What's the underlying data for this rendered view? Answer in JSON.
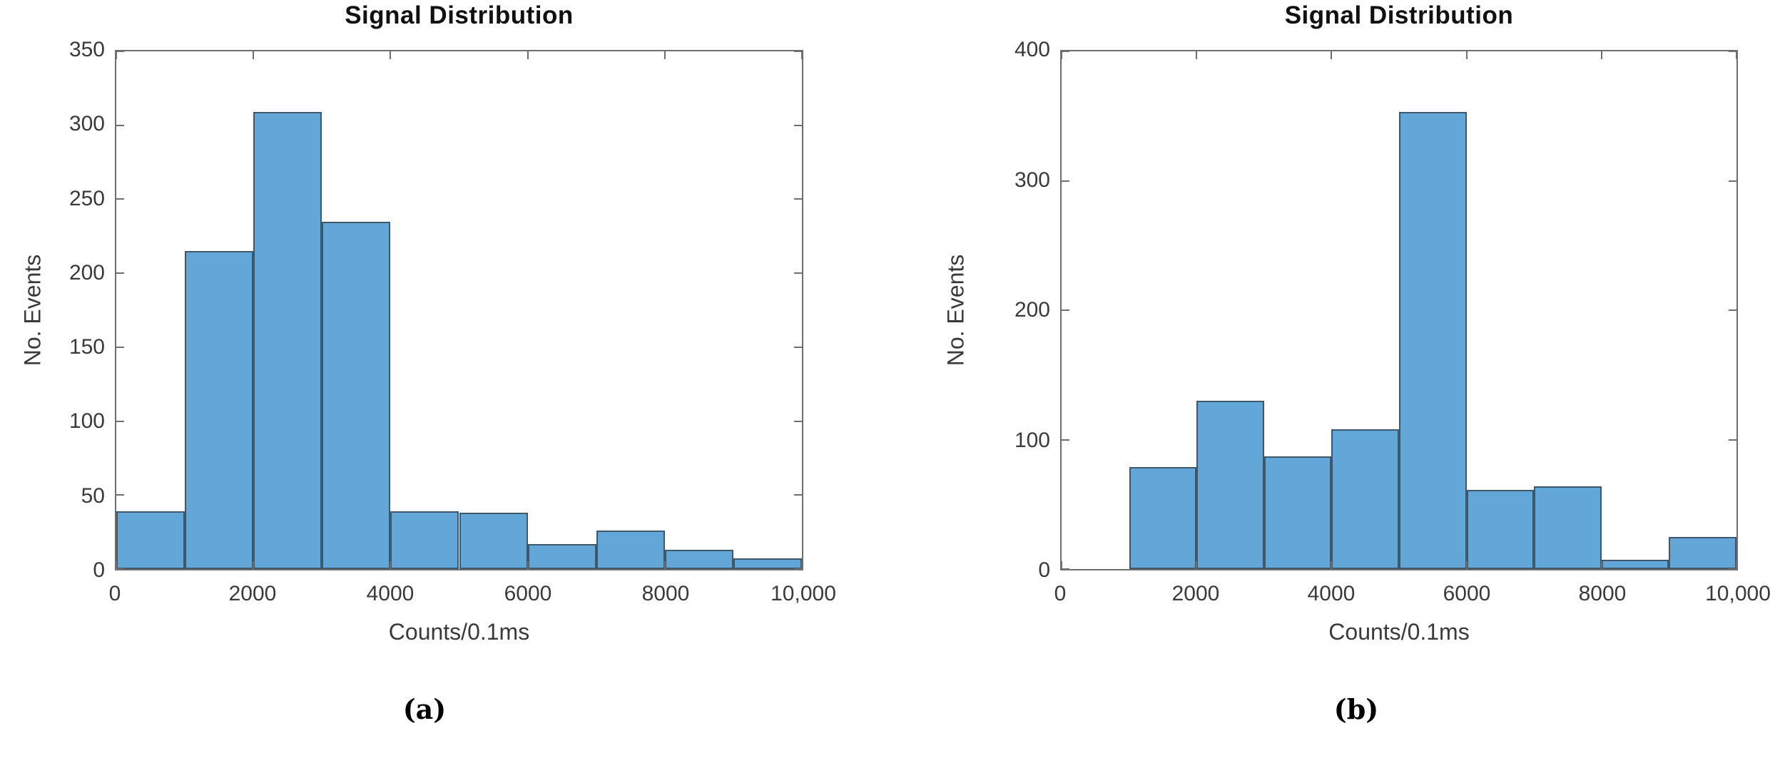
{
  "figure": {
    "background": "#ffffff",
    "axis_color": "#6f6f6f",
    "tick_label_color": "#3a3a3a",
    "title_color": "#111111"
  },
  "chart_data": [
    {
      "id": "a",
      "type": "bar",
      "subtype": "histogram",
      "title": "Signal Distribution",
      "xlabel": "Counts/0.1ms",
      "ylabel": "No. Events",
      "caption": "(a)",
      "xlim": [
        0,
        10000
      ],
      "ylim": [
        0,
        350
      ],
      "xticks": [
        0,
        2000,
        4000,
        6000,
        8000,
        10000
      ],
      "xtick_labels": [
        "0",
        "2000",
        "4000",
        "6000",
        "8000",
        "10,000"
      ],
      "yticks": [
        0,
        50,
        100,
        150,
        200,
        250,
        300,
        350
      ],
      "ytick_labels": [
        "0",
        "50",
        "100",
        "150",
        "200",
        "250",
        "300",
        "350"
      ],
      "bin_edges": [
        0,
        1000,
        2000,
        3000,
        4000,
        5000,
        6000,
        7000,
        8000,
        9000,
        10000
      ],
      "values": [
        39,
        215,
        309,
        235,
        39,
        38,
        17,
        26,
        13,
        7
      ],
      "bar_fill": "#63a7d8",
      "bar_edge": "#3f576b",
      "grid": false,
      "legend": null
    },
    {
      "id": "b",
      "type": "bar",
      "subtype": "histogram",
      "title": "Signal Distribution",
      "xlabel": "Counts/0.1ms",
      "ylabel": "No. Events",
      "caption": "(b)",
      "xlim": [
        0,
        10000
      ],
      "ylim": [
        0,
        400
      ],
      "xticks": [
        0,
        2000,
        4000,
        6000,
        8000,
        10000
      ],
      "xtick_labels": [
        "0",
        "2000",
        "4000",
        "6000",
        "8000",
        "10,000"
      ],
      "yticks": [
        0,
        100,
        200,
        300,
        400
      ],
      "ytick_labels": [
        "0",
        "100",
        "200",
        "300",
        "400"
      ],
      "bin_edges": [
        1000,
        2000,
        3000,
        4000,
        5000,
        6000,
        7000,
        8000,
        9000,
        10000
      ],
      "values": [
        79,
        130,
        87,
        108,
        353,
        61,
        64,
        7,
        25
      ],
      "bar_fill": "#63a7d8",
      "bar_edge": "#3f576b",
      "grid": false,
      "legend": null
    }
  ]
}
